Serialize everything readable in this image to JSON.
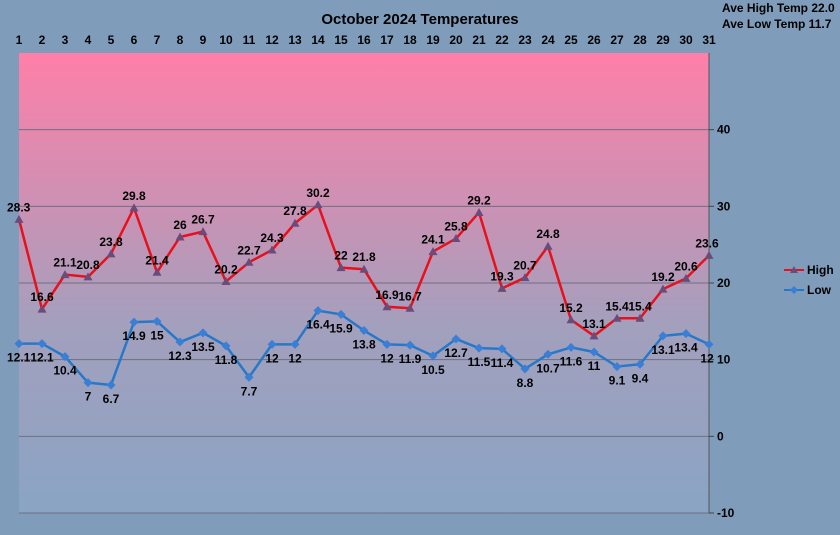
{
  "chart_data": {
    "type": "line",
    "title": "October 2024 Temperatures",
    "annotations": [
      "Ave High Temp 22.0",
      "Ave Low Temp 11.7"
    ],
    "categories": [
      "1",
      "2",
      "3",
      "4",
      "5",
      "6",
      "7",
      "8",
      "9",
      "10",
      "11",
      "12",
      "13",
      "14",
      "15",
      "16",
      "17",
      "18",
      "19",
      "20",
      "21",
      "22",
      "23",
      "24",
      "25",
      "26",
      "27",
      "28",
      "29",
      "30",
      "31"
    ],
    "series": [
      {
        "name": "High",
        "color": "#e8101c",
        "marker": "triangle",
        "marker_color": "#6a4c7a",
        "values": [
          28.3,
          16.6,
          21.1,
          20.8,
          23.8,
          29.8,
          21.4,
          26,
          26.7,
          20.2,
          22.7,
          24.3,
          27.8,
          30.2,
          22,
          21.8,
          16.9,
          16.7,
          24.1,
          25.8,
          29.2,
          19.3,
          20.7,
          24.8,
          15.2,
          13.1,
          15.4,
          15.4,
          19.2,
          20.6,
          23.6
        ]
      },
      {
        "name": "Low",
        "color": "#2878c8",
        "marker": "diamond",
        "marker_color": "#3a7ed6",
        "values": [
          12.1,
          12.1,
          10.4,
          7,
          6.7,
          14.9,
          15,
          12.3,
          13.5,
          11.8,
          7.7,
          12,
          12,
          16.4,
          15.9,
          13.8,
          12,
          11.9,
          10.5,
          12.7,
          11.5,
          11.4,
          8.8,
          10.7,
          11.6,
          11,
          9.1,
          9.4,
          13.1,
          13.4,
          12
        ]
      }
    ],
    "y_ticks": [
      "40",
      "30",
      "20",
      "10",
      "0",
      "-10"
    ],
    "ylim": [
      -10,
      50
    ],
    "x_axis_position": "top",
    "y_axis_position": "right",
    "grid": true,
    "legend_position": "right",
    "plot_gradient": [
      "#ff7fa8",
      "#a2a0bd",
      "#8aa4c4"
    ]
  }
}
